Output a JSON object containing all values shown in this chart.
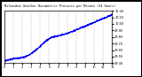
{
  "title": "Milwaukee Weather Barometric Pressure per Minute (24 Hours)",
  "background_color": "#ffffff",
  "plot_bg_color": "#ffffff",
  "dot_color": "#0000ff",
  "highlight_color": "#0000ff",
  "grid_color": "#aaaaaa",
  "border_color": "#000000",
  "y_min": 29.4,
  "y_max": 30.2,
  "x_min": 0,
  "x_max": 1440,
  "pressure_start": 29.45,
  "pressure_end": 30.15,
  "ytick_labels": [
    "29.40",
    "29.50",
    "29.60",
    "29.70",
    "29.80",
    "29.90",
    "30.00",
    "30.10",
    "30.20"
  ],
  "ytick_values": [
    29.4,
    29.5,
    29.6,
    29.7,
    29.8,
    29.9,
    30.0,
    30.1,
    30.2
  ],
  "xtick_positions": [
    0,
    120,
    240,
    360,
    480,
    600,
    720,
    840,
    960,
    1080,
    1200,
    1320,
    1440
  ],
  "xtick_labels": [
    "0",
    "1",
    "2",
    "3",
    "4",
    "5",
    "6",
    "7",
    "8",
    "9",
    "10",
    "11",
    "12"
  ]
}
